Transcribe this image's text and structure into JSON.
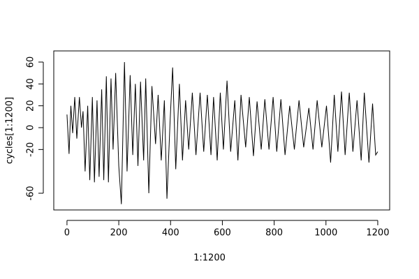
{
  "chart_data": {
    "type": "line",
    "xlabel": "1:1200",
    "ylabel": "cycles[1:1200]",
    "x": [
      0,
      8,
      15,
      22,
      30,
      38,
      48,
      56,
      62,
      70,
      80,
      88,
      98,
      106,
      116,
      124,
      134,
      142,
      152,
      160,
      170,
      178,
      188,
      200,
      210,
      222,
      232,
      244,
      254,
      264,
      274,
      284,
      296,
      304,
      316,
      328,
      342,
      352,
      364,
      376,
      386,
      398,
      408,
      420,
      434,
      446,
      458,
      470,
      484,
      498,
      514,
      528,
      542,
      556,
      566,
      580,
      592,
      604,
      618,
      632,
      648,
      660,
      672,
      690,
      704,
      720,
      734,
      750,
      764,
      780,
      796,
      810,
      826,
      842,
      860,
      878,
      896,
      914,
      934,
      950,
      966,
      984,
      1002,
      1018,
      1032,
      1046,
      1060,
      1074,
      1090,
      1104,
      1120,
      1136,
      1148,
      1166,
      1180,
      1192,
      1200
    ],
    "values": [
      12,
      -24,
      20,
      -5,
      28,
      -10,
      28,
      0,
      15,
      -40,
      20,
      -48,
      28,
      -50,
      25,
      -45,
      35,
      -48,
      47,
      -50,
      45,
      -20,
      50,
      -35,
      -70,
      60,
      -40,
      48,
      -25,
      40,
      -35,
      42,
      -30,
      45,
      -60,
      38,
      -15,
      30,
      -30,
      25,
      -65,
      5,
      55,
      -38,
      40,
      -30,
      25,
      -20,
      32,
      -25,
      32,
      -22,
      30,
      -25,
      28,
      -30,
      32,
      -20,
      43,
      -22,
      25,
      -30,
      30,
      -18,
      28,
      -26,
      24,
      -20,
      26,
      -20,
      28,
      -22,
      26,
      -25,
      20,
      -20,
      25,
      -18,
      18,
      -20,
      25,
      -18,
      20,
      -32,
      30,
      -22,
      33,
      -25,
      32,
      -22,
      25,
      -30,
      32,
      -32,
      22,
      -25,
      -22
    ],
    "color": "#000000",
    "xlim": [
      -51,
      1246
    ],
    "ylim": [
      -75.3,
      70.2
    ],
    "xticks": [
      0,
      200,
      400,
      600,
      800,
      1000,
      1200
    ],
    "yticks": [
      -60,
      -20,
      0,
      20,
      40,
      60
    ]
  }
}
